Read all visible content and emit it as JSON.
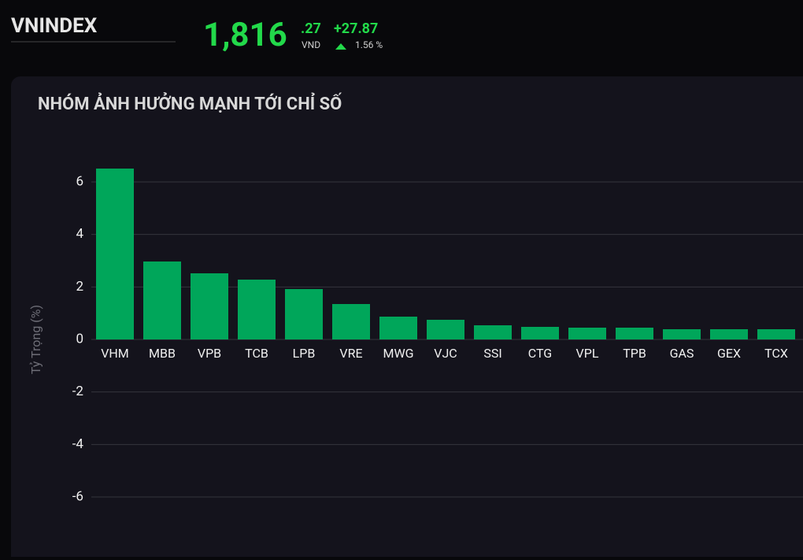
{
  "header": {
    "index_name": "VNINDEX",
    "price_int": "1,816",
    "price_dec": ".27",
    "currency": "VND",
    "change": "+27.87",
    "change_pct": "1.56 %"
  },
  "chart_data": {
    "type": "bar",
    "title": "NHÓM ẢNH HƯỞNG MẠNH TỚI CHỈ SỐ",
    "y_label": "Tỷ Trọng (%)",
    "categories": [
      "VHM",
      "MBB",
      "VPB",
      "TCB",
      "LPB",
      "VRE",
      "MWG",
      "VJC",
      "SSI",
      "CTG",
      "VPL",
      "TPB",
      "GAS",
      "GEX",
      "TCX"
    ],
    "values": [
      6.51,
      2.97,
      2.52,
      2.28,
      1.92,
      1.35,
      0.87,
      0.75,
      0.54,
      0.48,
      0.45,
      0.45,
      0.39,
      0.39,
      0.39
    ],
    "color": "#00a65a",
    "ylim": [
      -7,
      7
    ],
    "yticks": [
      -6,
      -4,
      -2,
      0,
      2,
      4,
      6
    ],
    "grid": true
  }
}
